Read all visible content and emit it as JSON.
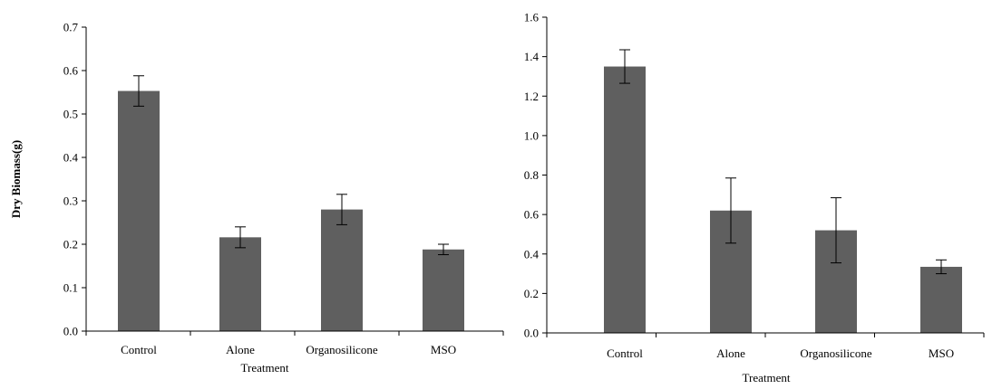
{
  "chart_data": [
    {
      "type": "bar",
      "categories": [
        "Control",
        "Alone",
        "Organosilicone",
        "MSO"
      ],
      "values": [
        0.553,
        0.216,
        0.28,
        0.188
      ],
      "errors": [
        0.035,
        0.024,
        0.035,
        0.012
      ],
      "xlabel": "Treatment",
      "ylabel": "Dry Biomass(g)",
      "ylim": [
        0,
        0.7
      ],
      "yticks": [
        "0.0",
        "0.1",
        "0.2",
        "0.3",
        "0.4",
        "0.5",
        "0.6",
        "0.7"
      ],
      "grid": false,
      "bar_color": "#5f5f5f"
    },
    {
      "type": "bar",
      "categories": [
        "Control",
        "Alone",
        "Organosilicone",
        "MSO"
      ],
      "values": [
        1.35,
        0.62,
        0.52,
        0.335
      ],
      "errors": [
        0.085,
        0.165,
        0.165,
        0.035
      ],
      "xlabel": "Treatment",
      "ylabel": "",
      "ylim": [
        0,
        1.6
      ],
      "yticks": [
        "0.0",
        "0.2",
        "0.4",
        "0.6",
        "0.8",
        "1.0",
        "1.2",
        "1.4",
        "1.6"
      ],
      "grid": false,
      "bar_color": "#5f5f5f"
    }
  ]
}
